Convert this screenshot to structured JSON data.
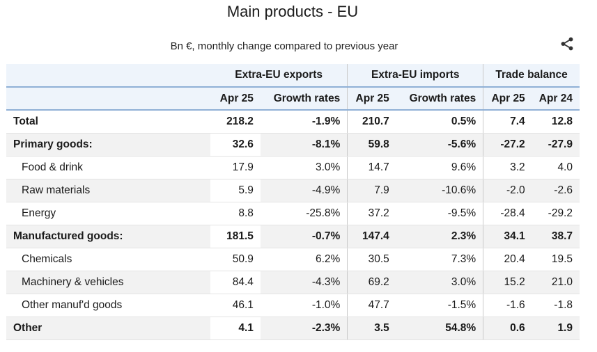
{
  "title": "Main products - EU",
  "subtitle": "Bn €, monthly change compared to previous year",
  "share_icon": "share-icon",
  "chart_data": {
    "type": "table",
    "title": "Main products - EU",
    "subtitle": "Bn €, monthly change compared to previous year",
    "column_groups": [
      "Extra-EU exports",
      "Extra-EU imports",
      "Trade balance"
    ],
    "columns": [
      "Apr 25",
      "Growth rates",
      "Apr 25",
      "Growth rates",
      "Apr 25",
      "Apr 24"
    ],
    "rows": [
      {
        "label": "Total",
        "values": [
          "218.2",
          "-1.9%",
          "210.7",
          "0.5%",
          "7.4",
          "12.8"
        ]
      },
      {
        "label": "Primary goods:",
        "values": [
          "32.6",
          "-8.1%",
          "59.8",
          "-5.6%",
          "-27.2",
          "-27.9"
        ]
      },
      {
        "label": "Food & drink",
        "values": [
          "17.9",
          "3.0%",
          "14.7",
          "9.6%",
          "3.2",
          "4.0"
        ]
      },
      {
        "label": "Raw materials",
        "values": [
          "5.9",
          "-4.9%",
          "7.9",
          "-10.6%",
          "-2.0",
          "-2.6"
        ]
      },
      {
        "label": "Energy",
        "values": [
          "8.8",
          "-25.8%",
          "37.2",
          "-9.5%",
          "-28.4",
          "-29.2"
        ]
      },
      {
        "label": "Manufactured goods:",
        "values": [
          "181.5",
          "-0.7%",
          "147.4",
          "2.3%",
          "34.1",
          "38.7"
        ]
      },
      {
        "label": "Chemicals",
        "values": [
          "50.9",
          "6.2%",
          "30.5",
          "7.3%",
          "20.4",
          "19.5"
        ]
      },
      {
        "label": "Machinery & vehicles",
        "values": [
          "84.4",
          "-4.3%",
          "69.2",
          "3.0%",
          "15.2",
          "21.0"
        ]
      },
      {
        "label": "Other manuf'd goods",
        "values": [
          "46.1",
          "-1.0%",
          "47.7",
          "-1.5%",
          "-1.6",
          "-1.8"
        ]
      },
      {
        "label": "Other",
        "values": [
          "4.1",
          "-2.3%",
          "3.5",
          "54.8%",
          "0.6",
          "1.9"
        ]
      }
    ]
  }
}
